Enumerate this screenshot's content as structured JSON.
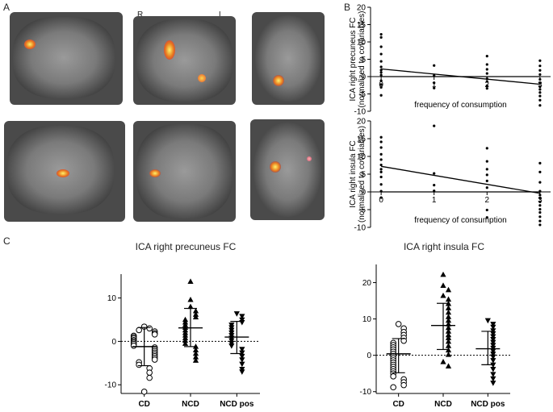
{
  "panels": {
    "a": "A",
    "b": "B",
    "c": "C"
  },
  "brain_labels": {
    "right": "R",
    "left": "L"
  },
  "chart_data": [
    {
      "type": "scatter",
      "panel": "B-top",
      "ylabel": [
        "ICA right precuneus FC",
        "(normalized to covariables)"
      ],
      "xlabel": "frequency of consumption",
      "xticks": [
        0,
        1,
        2,
        3
      ],
      "xlim": [
        -0.2,
        3.2
      ],
      "yticks": [
        20,
        15,
        10,
        5,
        0,
        -5,
        -10
      ],
      "ylim": [
        -10,
        20
      ],
      "points": [
        {
          "x": 0,
          "y": 12.2
        },
        {
          "x": 0,
          "y": 11.3
        },
        {
          "x": 0,
          "y": 8.6
        },
        {
          "x": 0,
          "y": 6.5
        },
        {
          "x": 0,
          "y": 4.4
        },
        {
          "x": 0,
          "y": 2.8
        },
        {
          "x": 0,
          "y": 1.9
        },
        {
          "x": 0,
          "y": 1.2
        },
        {
          "x": 0,
          "y": 0.4
        },
        {
          "x": 0,
          "y": -1.2
        },
        {
          "x": 0,
          "y": -2.3
        },
        {
          "x": 0,
          "y": -3.1
        },
        {
          "x": 0,
          "y": -5.4
        },
        {
          "x": 1,
          "y": 3.2
        },
        {
          "x": 1,
          "y": 0.3
        },
        {
          "x": 1,
          "y": -1.8
        },
        {
          "x": 1,
          "y": -3.3
        },
        {
          "x": 2,
          "y": 5.9
        },
        {
          "x": 2,
          "y": 3.5
        },
        {
          "x": 2,
          "y": 2.1
        },
        {
          "x": 2,
          "y": 0.9
        },
        {
          "x": 2,
          "y": -0.6
        },
        {
          "x": 2,
          "y": -1.4
        },
        {
          "x": 2,
          "y": -2.6
        },
        {
          "x": 2,
          "y": -3.4
        },
        {
          "x": 3,
          "y": 4.6
        },
        {
          "x": 3,
          "y": 3.1
        },
        {
          "x": 3,
          "y": 1.8
        },
        {
          "x": 3,
          "y": 0.6
        },
        {
          "x": 3,
          "y": -0.8
        },
        {
          "x": 3,
          "y": -1.8
        },
        {
          "x": 3,
          "y": -2.9
        },
        {
          "x": 3,
          "y": -3.7
        },
        {
          "x": 3,
          "y": -4.6
        },
        {
          "x": 3,
          "y": -5.6
        },
        {
          "x": 3,
          "y": -6.8
        },
        {
          "x": 3,
          "y": -8.3
        }
      ],
      "lines": [
        {
          "x": [
            0,
            3
          ],
          "y": [
            2.2,
            -2.2
          ]
        },
        {
          "x": [
            0,
            3
          ],
          "y": [
            0,
            0
          ]
        }
      ]
    },
    {
      "type": "scatter",
      "panel": "B-bottom",
      "ylabel": [
        "ICA right insula FC",
        "(normalized to covariables)"
      ],
      "xlabel": "frequency of consumption",
      "xticks": [
        0,
        1,
        2,
        3
      ],
      "xlim": [
        -0.2,
        3.2
      ],
      "yticks": [
        20,
        15,
        10,
        5,
        0,
        -5,
        -10
      ],
      "ylim": [
        -10,
        20
      ],
      "points": [
        {
          "x": 0,
          "y": 15.4
        },
        {
          "x": 0,
          "y": 14.1
        },
        {
          "x": 0,
          "y": 12.5
        },
        {
          "x": 0,
          "y": 10.6
        },
        {
          "x": 0,
          "y": 9.1
        },
        {
          "x": 0,
          "y": 7.6
        },
        {
          "x": 0,
          "y": 6.4
        },
        {
          "x": 0,
          "y": 5.6
        },
        {
          "x": 0,
          "y": 4.2
        },
        {
          "x": 0,
          "y": 2.1
        },
        {
          "x": 0,
          "y": 0.2
        },
        {
          "x": 0,
          "y": -1.6
        },
        {
          "x": 1,
          "y": 18.6
        },
        {
          "x": 1,
          "y": 5.2
        },
        {
          "x": 1,
          "y": 1.9
        },
        {
          "x": 1,
          "y": 0.3
        },
        {
          "x": 2,
          "y": 12.3
        },
        {
          "x": 2,
          "y": 8.6
        },
        {
          "x": 2,
          "y": 6.4
        },
        {
          "x": 2,
          "y": 4.8
        },
        {
          "x": 2,
          "y": 3.1
        },
        {
          "x": 2,
          "y": 1.2
        },
        {
          "x": 2,
          "y": -5.1
        },
        {
          "x": 2,
          "y": -7.2
        },
        {
          "x": 3,
          "y": 8.1
        },
        {
          "x": 3,
          "y": 5.6
        },
        {
          "x": 3,
          "y": 2.7
        },
        {
          "x": 3,
          "y": 0.2
        },
        {
          "x": 3,
          "y": -0.9
        },
        {
          "x": 3,
          "y": -1.8
        },
        {
          "x": 3,
          "y": -2.8
        },
        {
          "x": 3,
          "y": -3.8
        },
        {
          "x": 3,
          "y": -4.9
        },
        {
          "x": 3,
          "y": -5.8
        },
        {
          "x": 3,
          "y": -7.0
        },
        {
          "x": 3,
          "y": -8.2
        },
        {
          "x": 3,
          "y": -9.3
        }
      ],
      "lines": [
        {
          "x": [
            0,
            3
          ],
          "y": [
            7.2,
            -0.4
          ]
        },
        {
          "x": [
            0,
            3
          ],
          "y": [
            0,
            0
          ]
        }
      ]
    },
    {
      "type": "scatter",
      "panel": "C-left",
      "title": "ICA right precuneus FC",
      "categories": [
        "CD",
        "NCD",
        "NCD pos"
      ],
      "yticks": [
        10,
        0,
        -10
      ],
      "ylim": [
        -12,
        15.5
      ],
      "markers": [
        "circle",
        "triangle-up",
        "triangle-down"
      ],
      "series": [
        {
          "values": [
            3.4,
            3.0,
            2.6,
            2.3,
            1.9,
            1.6,
            1.3,
            1.0,
            0.7,
            0.3,
            0.0,
            -0.3,
            -0.6,
            -1.0,
            -1.4,
            -1.8,
            -2.2,
            -2.6,
            -3.0,
            -3.4,
            -3.8,
            -4.2,
            -4.8,
            -5.4,
            -6.2,
            -7.2,
            -8.4,
            -11.6
          ],
          "mean": -1.2,
          "sd_low": -5.6,
          "sd_high": 3.2
        },
        {
          "values": [
            13.8,
            9.6,
            8.0,
            7.0,
            6.2,
            5.6,
            5.0,
            4.4,
            3.8,
            3.2,
            2.6,
            2.0,
            1.4,
            0.8,
            0.2,
            -0.5,
            -1.2,
            -2.0,
            -2.8,
            -3.6,
            -4.4
          ],
          "mean": 3.1,
          "sd_low": -1.2,
          "sd_high": 7.6
        },
        {
          "values": [
            6.4,
            5.8,
            5.0,
            4.4,
            3.8,
            3.2,
            2.6,
            2.0,
            1.4,
            0.8,
            0.2,
            -0.4,
            -1.0,
            -1.8,
            -2.6,
            -3.4,
            -4.2,
            -5.2,
            -6.4,
            -7.0
          ],
          "mean": 1.0,
          "sd_low": -2.8,
          "sd_high": 4.6
        }
      ]
    },
    {
      "type": "scatter",
      "panel": "C-right",
      "title": "ICA right insula FC",
      "categories": [
        "CD",
        "NCD",
        "NCD pos"
      ],
      "yticks": [
        20,
        10,
        0,
        -10
      ],
      "ylim": [
        -10.5,
        25
      ],
      "markers": [
        "circle",
        "triangle-up",
        "triangle-down"
      ],
      "series": [
        {
          "values": [
            8.6,
            7.4,
            6.4,
            5.6,
            4.8,
            4.0,
            3.4,
            2.8,
            2.2,
            1.6,
            1.0,
            0.4,
            -0.2,
            -0.8,
            -1.4,
            -2.0,
            -2.6,
            -3.2,
            -3.8,
            -4.4,
            -5.0,
            -5.8,
            -6.6,
            -7.4,
            -8.2,
            -8.8
          ],
          "mean": 0.4,
          "sd_low": -4.8,
          "sd_high": 4.6
        },
        {
          "values": [
            22.2,
            19.2,
            18.0,
            16.4,
            15.4,
            14.2,
            13.0,
            11.8,
            10.6,
            9.6,
            8.6,
            7.6,
            6.6,
            5.6,
            4.8,
            3.8,
            2.6,
            1.4,
            0.2,
            -1.8,
            -3.0
          ],
          "mean": 8.2,
          "sd_low": 1.6,
          "sd_high": 14.3
        },
        {
          "values": [
            9.6,
            8.6,
            7.8,
            6.8,
            6.0,
            5.2,
            4.4,
            3.6,
            2.8,
            2.0,
            1.2,
            0.4,
            -0.4,
            -1.4,
            -2.6,
            -3.8,
            -5.2,
            -6.4,
            -7.6
          ],
          "mean": 1.8,
          "sd_low": -2.6,
          "sd_high": 6.6
        }
      ]
    }
  ]
}
